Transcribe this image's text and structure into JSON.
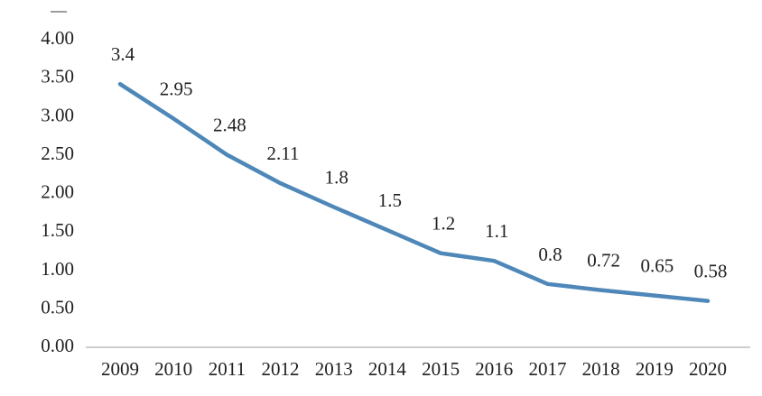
{
  "chart_data": {
    "type": "line",
    "title": "",
    "xlabel": "",
    "ylabel": "",
    "categories": [
      "2009",
      "2010",
      "2011",
      "2012",
      "2013",
      "2014",
      "2015",
      "2016",
      "2017",
      "2018",
      "2019",
      "2020"
    ],
    "values": [
      3.4,
      2.95,
      2.48,
      2.11,
      1.8,
      1.5,
      1.2,
      1.1,
      0.8,
      0.72,
      0.65,
      0.58
    ],
    "data_labels": [
      "3.4",
      "2.95",
      "2.48",
      "2.11",
      "1.8",
      "1.5",
      "1.2",
      "1.1",
      "0.8",
      "0.72",
      "0.65",
      "0.58"
    ],
    "ylim": [
      0,
      4
    ],
    "ytick_step": 0.5,
    "ytick_labels": [
      "0.00",
      "0.50",
      "1.00",
      "1.50",
      "2.00",
      "2.50",
      "3.00",
      "3.50",
      "4.00"
    ],
    "grid": false,
    "legend": "none",
    "colors": {
      "line": "#4e87b8",
      "axis": "#bdbdbd",
      "text": "#1f1f1f"
    }
  }
}
